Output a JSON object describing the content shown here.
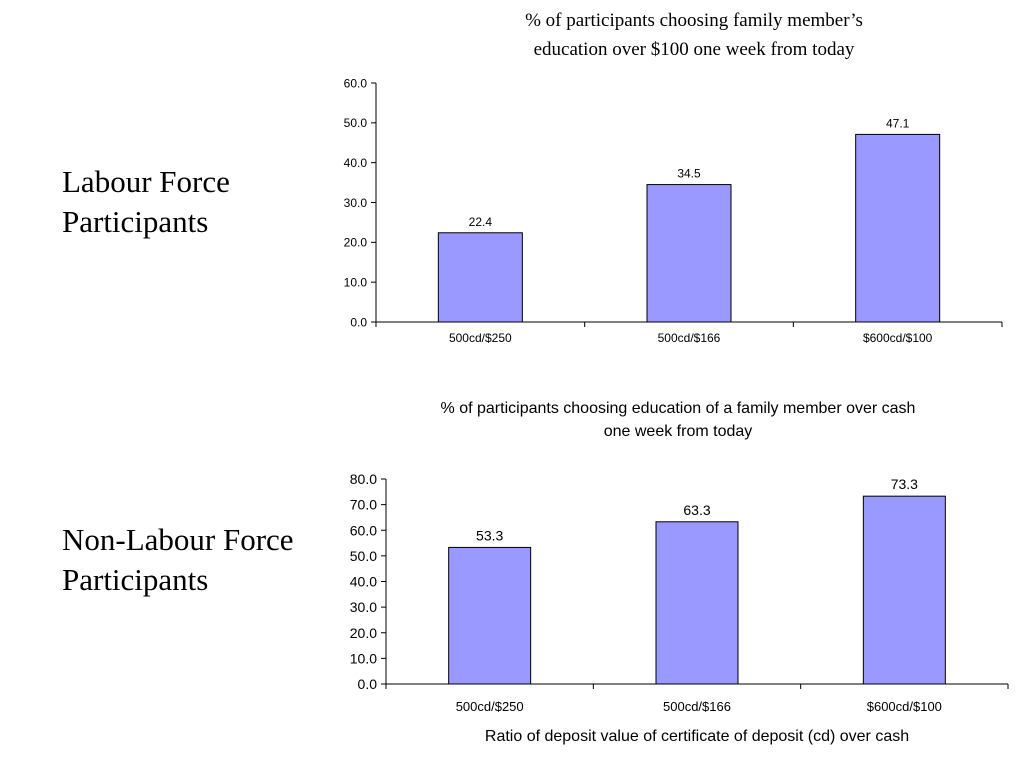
{
  "labels": {
    "top": {
      "line1": "Labour Force",
      "line2": "Participants"
    },
    "bottom": {
      "line1": "Non-Labour Force",
      "line2": "Participants"
    }
  },
  "colors": {
    "bar_fill": "#9999ff",
    "bar_stroke": "#000000",
    "axis": "#000000"
  },
  "chart_data": [
    {
      "type": "bar",
      "title": "% of participants choosing family member’s education over $100 one week from today",
      "title_lines": [
        "% of participants choosing family member’s",
        "education over $100 one week from today"
      ],
      "categories": [
        "500cd/$250",
        "500cd/$166",
        "$600cd/$100"
      ],
      "values": [
        22.4,
        34.5,
        47.1
      ],
      "value_labels": [
        "22.4",
        "34.5",
        "47.1"
      ],
      "ylim": [
        0,
        60
      ],
      "yticks": [
        "0.0",
        "10.0",
        "20.0",
        "30.0",
        "40.0",
        "50.0",
        "60.0"
      ],
      "xlabel": "",
      "ylabel": "",
      "grid": false,
      "legend": "none"
    },
    {
      "type": "bar",
      "title": "% of participants choosing education of a family member over cash one week from today",
      "title_lines": [
        "% of participants choosing education of a family member over cash",
        "one week from today"
      ],
      "categories": [
        "500cd/$250",
        "500cd/$166",
        "$600cd/$100"
      ],
      "values": [
        53.3,
        63.3,
        73.3
      ],
      "value_labels": [
        "53.3",
        "63.3",
        "73.3"
      ],
      "ylim": [
        0,
        80
      ],
      "yticks": [
        "0.0",
        "10.0",
        "20.0",
        "30.0",
        "40.0",
        "50.0",
        "60.0",
        "70.0",
        "80.0"
      ],
      "xlabel": "Ratio of deposit value of certificate of deposit (cd) over cash",
      "ylabel": "",
      "grid": false,
      "legend": "none"
    }
  ]
}
